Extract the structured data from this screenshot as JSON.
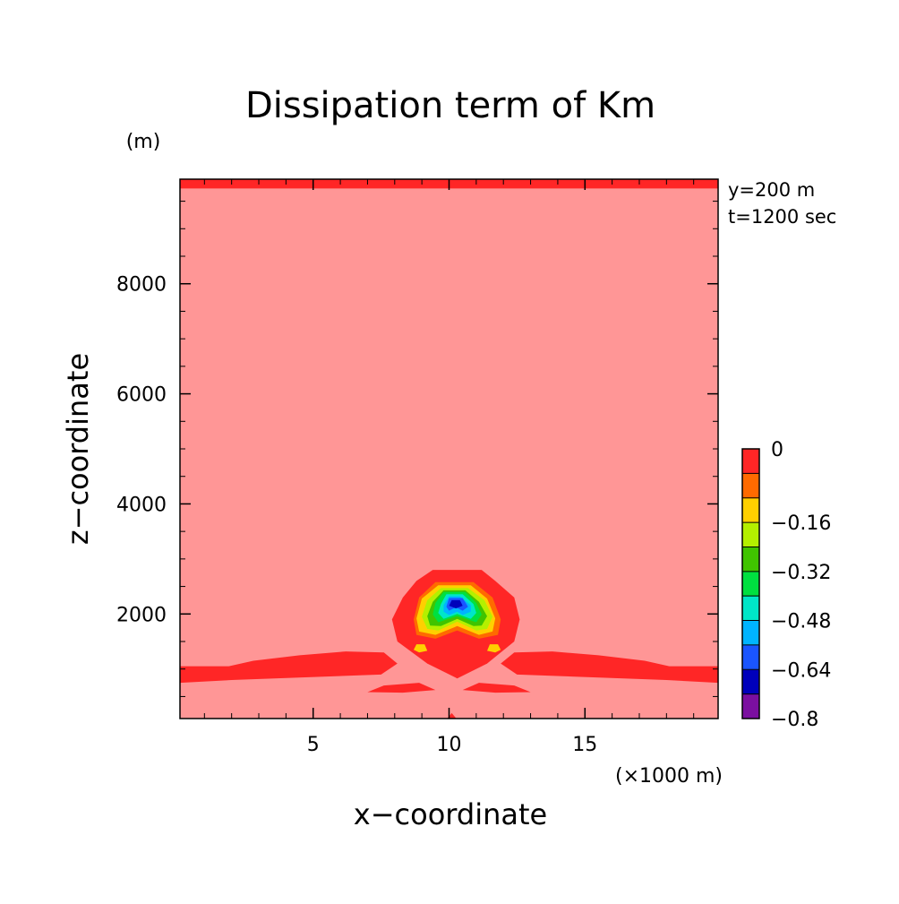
{
  "chart_data": {
    "type": "heatmap",
    "title": "Dissipation term of Km",
    "xlabel": "x−coordinate",
    "ylabel": "z−coordinate",
    "x_unit": "(×1000 m)",
    "y_unit": "(m)",
    "annotations": [
      "y=200 m",
      "t=1200 sec"
    ],
    "x_range": [
      0.1,
      19.9
    ],
    "y_range": [
      100,
      9900
    ],
    "x_ticks": [
      {
        "value": 5,
        "label": "5"
      },
      {
        "value": 10,
        "label": "10"
      },
      {
        "value": 15,
        "label": "15"
      }
    ],
    "y_ticks": [
      {
        "value": 2000,
        "label": "2000"
      },
      {
        "value": 4000,
        "label": "4000"
      },
      {
        "value": 6000,
        "label": "6000"
      },
      {
        "value": 8000,
        "label": "8000"
      }
    ],
    "colorbar": {
      "levels": [
        {
          "from": -0.8,
          "to": -0.72,
          "color": "#7b0fa0",
          "label": "−0.8"
        },
        {
          "from": -0.72,
          "to": -0.64,
          "color": "#0000bb",
          "label": ""
        },
        {
          "from": -0.64,
          "to": -0.56,
          "color": "#1a55ff",
          "label": "−0.64"
        },
        {
          "from": -0.56,
          "to": -0.48,
          "color": "#00b4ff",
          "label": ""
        },
        {
          "from": -0.48,
          "to": -0.4,
          "color": "#00e6c8",
          "label": "−0.48"
        },
        {
          "from": -0.4,
          "to": -0.32,
          "color": "#00e040",
          "label": ""
        },
        {
          "from": -0.32,
          "to": -0.24,
          "color": "#40c400",
          "label": "−0.32"
        },
        {
          "from": -0.24,
          "to": -0.16,
          "color": "#b4f000",
          "label": ""
        },
        {
          "from": -0.16,
          "to": -0.08,
          "color": "#ffd000",
          "label": "−0.16"
        },
        {
          "from": -0.08,
          "to": 0.0,
          "color": "#ff6a00",
          "label": ""
        },
        {
          "from": 0.0,
          "to": 0.08,
          "color": "#ff2626",
          "label": "0"
        }
      ]
    },
    "background_color": "#ff9696",
    "regions": [
      {
        "level": 0.0,
        "points": [
          [
            0.1,
            9900
          ],
          [
            19.9,
            9900
          ],
          [
            19.9,
            9730
          ],
          [
            0.1,
            9730
          ]
        ]
      },
      {
        "level": 0.0,
        "points": [
          [
            0.1,
            1050
          ],
          [
            1.9,
            1050
          ],
          [
            2.8,
            1150
          ],
          [
            4.5,
            1250
          ],
          [
            6.2,
            1320
          ],
          [
            7.6,
            1300
          ],
          [
            8.1,
            1100
          ],
          [
            7.5,
            900
          ],
          [
            2.0,
            800
          ],
          [
            0.1,
            750
          ]
        ]
      },
      {
        "level": 0.0,
        "points": [
          [
            19.9,
            1050
          ],
          [
            18.1,
            1050
          ],
          [
            17.2,
            1150
          ],
          [
            15.5,
            1250
          ],
          [
            13.8,
            1320
          ],
          [
            12.4,
            1300
          ],
          [
            11.9,
            1100
          ],
          [
            12.5,
            900
          ],
          [
            18.0,
            800
          ],
          [
            19.9,
            750
          ]
        ]
      },
      {
        "level": 0.0,
        "points": [
          [
            7.0,
            580
          ],
          [
            7.6,
            700
          ],
          [
            8.9,
            750
          ],
          [
            9.5,
            620
          ],
          [
            8.3,
            570
          ]
        ]
      },
      {
        "level": 0.0,
        "points": [
          [
            13.0,
            580
          ],
          [
            12.4,
            700
          ],
          [
            11.1,
            750
          ],
          [
            10.5,
            620
          ],
          [
            11.7,
            570
          ]
        ]
      },
      {
        "level": 0.0,
        "points": [
          [
            10.2,
            2800
          ],
          [
            11.2,
            2800
          ],
          [
            11.7,
            2600
          ],
          [
            12.4,
            2300
          ],
          [
            12.6,
            1900
          ],
          [
            12.4,
            1500
          ],
          [
            11.4,
            1100
          ],
          [
            10.3,
            830
          ],
          [
            9.2,
            1100
          ],
          [
            8.1,
            1500
          ],
          [
            7.9,
            1900
          ],
          [
            8.3,
            2300
          ],
          [
            8.8,
            2600
          ],
          [
            9.4,
            2800
          ]
        ]
      },
      {
        "level": -0.08,
        "points": [
          [
            9.5,
            2580
          ],
          [
            10.9,
            2580
          ],
          [
            11.6,
            2300
          ],
          [
            11.9,
            1900
          ],
          [
            11.8,
            1620
          ],
          [
            11.1,
            1550
          ],
          [
            10.3,
            1700
          ],
          [
            9.5,
            1550
          ],
          [
            8.8,
            1620
          ],
          [
            8.7,
            1900
          ],
          [
            8.9,
            2300
          ]
        ]
      },
      {
        "level": -0.16,
        "points": [
          [
            9.6,
            2520
          ],
          [
            10.8,
            2520
          ],
          [
            11.4,
            2280
          ],
          [
            11.7,
            1920
          ],
          [
            11.6,
            1680
          ],
          [
            11.1,
            1620
          ],
          [
            10.3,
            1780
          ],
          [
            9.5,
            1620
          ],
          [
            8.9,
            1680
          ],
          [
            8.8,
            1920
          ],
          [
            9.0,
            2280
          ]
        ]
      },
      {
        "level": -0.16,
        "points": [
          [
            8.8,
            1450
          ],
          [
            9.1,
            1450
          ],
          [
            9.2,
            1330
          ],
          [
            8.9,
            1300
          ],
          [
            8.7,
            1350
          ]
        ]
      },
      {
        "level": -0.16,
        "points": [
          [
            11.5,
            1450
          ],
          [
            11.8,
            1450
          ],
          [
            11.9,
            1350
          ],
          [
            11.7,
            1300
          ],
          [
            11.4,
            1330
          ]
        ]
      },
      {
        "level": -0.24,
        "points": [
          [
            9.7,
            2470
          ],
          [
            10.7,
            2470
          ],
          [
            11.3,
            2250
          ],
          [
            11.6,
            1950
          ],
          [
            11.4,
            1730
          ],
          [
            11.0,
            1700
          ],
          [
            10.3,
            1860
          ],
          [
            9.6,
            1700
          ],
          [
            9.2,
            1730
          ],
          [
            9.0,
            1950
          ],
          [
            9.2,
            2250
          ]
        ]
      },
      {
        "level": -0.32,
        "points": [
          [
            9.8,
            2430
          ],
          [
            10.6,
            2430
          ],
          [
            11.1,
            2220
          ],
          [
            11.4,
            1960
          ],
          [
            11.2,
            1790
          ],
          [
            10.9,
            1780
          ],
          [
            10.3,
            1910
          ],
          [
            9.7,
            1780
          ],
          [
            9.3,
            1790
          ],
          [
            9.2,
            1960
          ],
          [
            9.4,
            2220
          ]
        ]
      },
      {
        "level": -0.4,
        "points": [
          [
            9.8,
            2400
          ],
          [
            10.6,
            2400
          ],
          [
            11.0,
            2200
          ],
          [
            11.2,
            1990
          ],
          [
            11.0,
            1850
          ],
          [
            10.3,
            1960
          ],
          [
            9.6,
            1850
          ],
          [
            9.4,
            1990
          ],
          [
            9.5,
            2200
          ]
        ]
      },
      {
        "level": -0.48,
        "points": [
          [
            9.9,
            2360
          ],
          [
            10.5,
            2360
          ],
          [
            10.9,
            2180
          ],
          [
            11.0,
            2020
          ],
          [
            10.8,
            1910
          ],
          [
            10.3,
            2000
          ],
          [
            9.8,
            1910
          ],
          [
            9.6,
            2020
          ],
          [
            9.7,
            2180
          ]
        ]
      },
      {
        "level": -0.56,
        "points": [
          [
            10.0,
            2320
          ],
          [
            10.4,
            2320
          ],
          [
            10.8,
            2160
          ],
          [
            10.8,
            2040
          ],
          [
            10.5,
            1980
          ],
          [
            10.3,
            2040
          ],
          [
            10.0,
            1980
          ],
          [
            9.8,
            2040
          ],
          [
            9.8,
            2160
          ]
        ]
      },
      {
        "level": -0.64,
        "points": [
          [
            10.0,
            2290
          ],
          [
            10.5,
            2290
          ],
          [
            10.7,
            2130
          ],
          [
            10.5,
            2060
          ],
          [
            10.25,
            2120
          ],
          [
            10.0,
            2060
          ],
          [
            9.9,
            2130
          ]
        ]
      },
      {
        "level": -0.72,
        "points": [
          [
            10.1,
            2250
          ],
          [
            10.4,
            2250
          ],
          [
            10.5,
            2150
          ],
          [
            10.25,
            2100
          ],
          [
            10.0,
            2150
          ]
        ]
      },
      {
        "level": 0.0,
        "points": [
          [
            9.9,
            80
          ],
          [
            10.3,
            80
          ],
          [
            10.1,
            200
          ]
        ]
      }
    ]
  }
}
